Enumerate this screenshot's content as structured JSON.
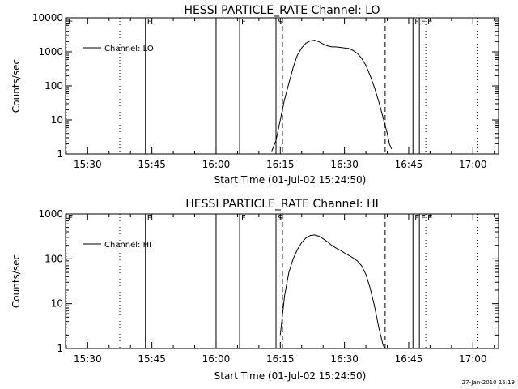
{
  "chart_data": [
    {
      "type": "line",
      "title": "HESSI PARTICLE_RATE Channel: LO",
      "xlabel": "Start Time (01-Jul-02 15:24:50)",
      "ylabel": "Counts/sec",
      "yscale": "log",
      "x_range": [
        "15:24:50",
        "17:06:00"
      ],
      "ylim": [
        1,
        10000
      ],
      "x_ticks": [
        "15:30",
        "15:45",
        "16:00",
        "16:15",
        "16:30",
        "16:45",
        "17:00"
      ],
      "y_ticks": [
        "1",
        "10",
        "100",
        "1000",
        "10000"
      ],
      "legend": {
        "position": "top-left",
        "entries": [
          "Channel: LO"
        ]
      },
      "series": [
        {
          "name": "Channel: LO",
          "x": [
            "16:13:00",
            "16:14:00",
            "16:15:00",
            "16:16:00",
            "16:17:00",
            "16:18:00",
            "16:19:00",
            "16:20:00",
            "16:21:00",
            "16:22:00",
            "16:23:00",
            "16:24:00",
            "16:25:00",
            "16:26:00",
            "16:27:00",
            "16:28:00",
            "16:29:00",
            "16:30:00",
            "16:31:00",
            "16:32:00",
            "16:33:00",
            "16:34:00",
            "16:35:00",
            "16:36:00",
            "16:37:00",
            "16:38:00",
            "16:39:00",
            "16:40:00",
            "16:40:30",
            "16:41:00"
          ],
          "y": [
            1.2,
            2.5,
            10,
            40,
            120,
            350,
            800,
            1300,
            1800,
            2100,
            2200,
            2000,
            1700,
            1500,
            1400,
            1400,
            1350,
            1300,
            1250,
            1100,
            900,
            650,
            400,
            200,
            90,
            35,
            12,
            4,
            2,
            1.4
          ]
        }
      ],
      "vertical_lines": [
        {
          "time": "15:25:00",
          "style": "dotted",
          "label": "E"
        },
        {
          "time": "15:37:30",
          "style": "dotted",
          "label": ""
        },
        {
          "time": "15:43:30",
          "style": "solid",
          "label": "F"
        },
        {
          "time": "16:00:00",
          "style": "solid",
          "label": ""
        },
        {
          "time": "16:05:30",
          "style": "solid",
          "label": "F"
        },
        {
          "time": "16:14:00",
          "style": "solid",
          "label": "S"
        },
        {
          "time": "16:15:30",
          "style": "dashed",
          "label": ""
        },
        {
          "time": "16:39:30",
          "style": "dashed",
          "label": ""
        },
        {
          "time": "16:46:00",
          "style": "solid",
          "label": "F"
        },
        {
          "time": "16:47:30",
          "style": "solid",
          "label": "F"
        },
        {
          "time": "16:49:00",
          "style": "dotted",
          "label": "E"
        },
        {
          "time": "17:01:00",
          "style": "dotted",
          "label": ""
        }
      ]
    },
    {
      "type": "line",
      "title": "HESSI PARTICLE_RATE Channel: HI",
      "xlabel": "Start Time (01-Jul-02 15:24:50)",
      "ylabel": "Counts/sec",
      "yscale": "log",
      "x_range": [
        "15:24:50",
        "17:06:00"
      ],
      "ylim": [
        1,
        1000
      ],
      "x_ticks": [
        "15:30",
        "15:45",
        "16:00",
        "16:15",
        "16:30",
        "16:45",
        "17:00"
      ],
      "y_ticks": [
        "1",
        "10",
        "100",
        "1000"
      ],
      "legend": {
        "position": "top-left",
        "entries": [
          "Channel: HI"
        ]
      },
      "series": [
        {
          "name": "Channel: HI",
          "x": [
            "16:15:00",
            "16:16:00",
            "16:17:00",
            "16:18:00",
            "16:19:00",
            "16:20:00",
            "16:21:00",
            "16:22:00",
            "16:23:00",
            "16:24:00",
            "16:25:00",
            "16:26:00",
            "16:27:00",
            "16:28:00",
            "16:29:00",
            "16:30:00",
            "16:31:00",
            "16:32:00",
            "16:33:00",
            "16:34:00",
            "16:35:00",
            "16:36:00",
            "16:37:00",
            "16:38:00",
            "16:39:00",
            "16:39:30"
          ],
          "y": [
            2,
            15,
            50,
            100,
            160,
            230,
            290,
            330,
            340,
            320,
            280,
            240,
            200,
            175,
            155,
            135,
            120,
            105,
            90,
            70,
            45,
            22,
            9,
            3,
            1.2,
            1
          ]
        }
      ],
      "vertical_lines": [
        {
          "time": "15:25:00",
          "style": "dotted",
          "label": "E"
        },
        {
          "time": "15:37:30",
          "style": "dotted",
          "label": ""
        },
        {
          "time": "15:43:30",
          "style": "solid",
          "label": "F"
        },
        {
          "time": "16:00:00",
          "style": "solid",
          "label": ""
        },
        {
          "time": "16:05:30",
          "style": "solid",
          "label": "F"
        },
        {
          "time": "16:14:00",
          "style": "solid",
          "label": "S"
        },
        {
          "time": "16:15:30",
          "style": "dashed",
          "label": ""
        },
        {
          "time": "16:39:30",
          "style": "dashed",
          "label": ""
        },
        {
          "time": "16:46:00",
          "style": "solid",
          "label": "F"
        },
        {
          "time": "16:47:30",
          "style": "solid",
          "label": "F"
        },
        {
          "time": "16:49:00",
          "style": "dotted",
          "label": "E"
        },
        {
          "time": "17:01:00",
          "style": "dotted",
          "label": ""
        }
      ]
    }
  ],
  "footer": {
    "timestamp": "27-Jan-2010 15:19"
  }
}
